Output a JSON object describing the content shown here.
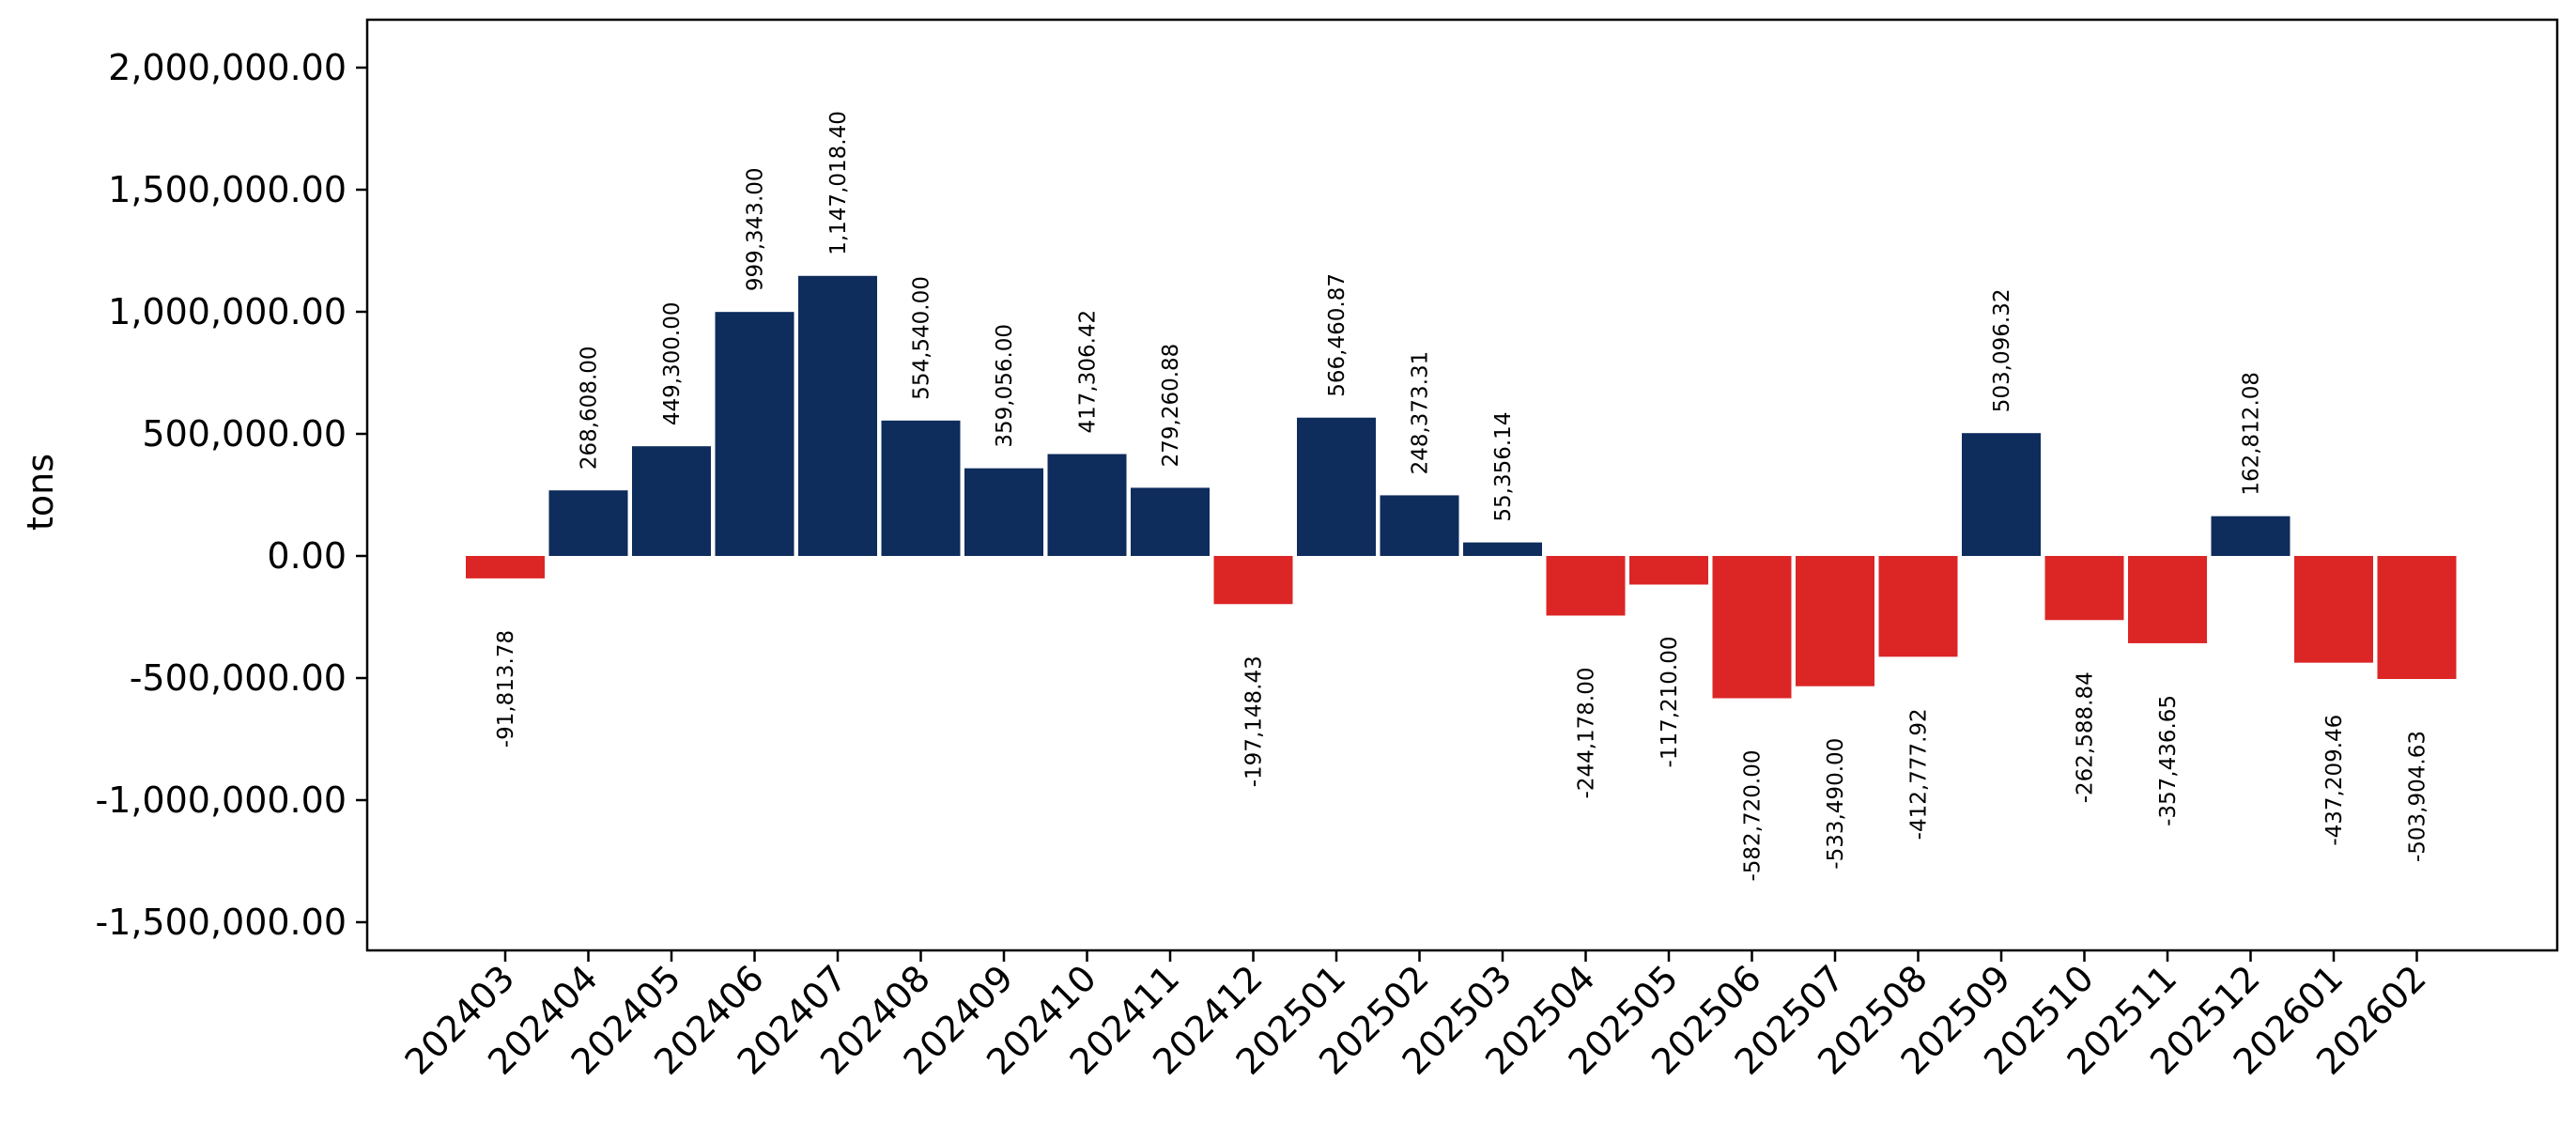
{
  "chart_data": {
    "type": "bar",
    "title": "",
    "xlabel": "",
    "ylabel": "tons",
    "ylim": [
      -1650000,
      2200000
    ],
    "yticks": [
      -1500000,
      -1000000,
      -500000,
      0,
      500000,
      1000000,
      1500000,
      2000000
    ],
    "ytick_labels": [
      "-1,500,000.00",
      "-1,000,000.00",
      "-500,000.00",
      "0.00",
      "500,000.00",
      "1,000,000.00",
      "1,500,000.00",
      "2,000,000.00"
    ],
    "grid": false,
    "colors": {
      "positive": "#0e2c5c",
      "negative": "#dc2626"
    },
    "categories": [
      "202403",
      "202404",
      "202405",
      "202406",
      "202407",
      "202408",
      "202409",
      "202410",
      "202411",
      "202412",
      "202501",
      "202502",
      "202503",
      "202504",
      "202505",
      "202506",
      "202507",
      "202508",
      "202509",
      "202510",
      "202511",
      "202512",
      "202601",
      "202602"
    ],
    "values": [
      -91813.78,
      268608.0,
      449300.0,
      999343.0,
      1147018.4,
      554540.0,
      359056.0,
      417306.42,
      279260.88,
      -197148.43,
      566460.87,
      248373.31,
      55356.14,
      -244178.0,
      -117210.0,
      -582720.0,
      -533490.0,
      -412777.92,
      503096.32,
      -262588.84,
      -357436.65,
      162812.08,
      -437209.46,
      -503904.63
    ],
    "value_labels": [
      "-91,813.78",
      "268,608.00",
      "449,300.00",
      "999,343.00",
      "1,147,018.40",
      "554,540.00",
      "359,056.00",
      "417,306.42",
      "279,260.88",
      "-197,148.43",
      "566,460.87",
      "248,373.31",
      "55,356.14",
      "-244,178.00",
      "-117,210.00",
      "-582,720.00",
      "-533,490.00",
      "-412,777.92",
      "503,096.32",
      "-262,588.84",
      "-357,436.65",
      "162,812.08",
      "-437,209.46",
      "-503,904.63"
    ]
  }
}
